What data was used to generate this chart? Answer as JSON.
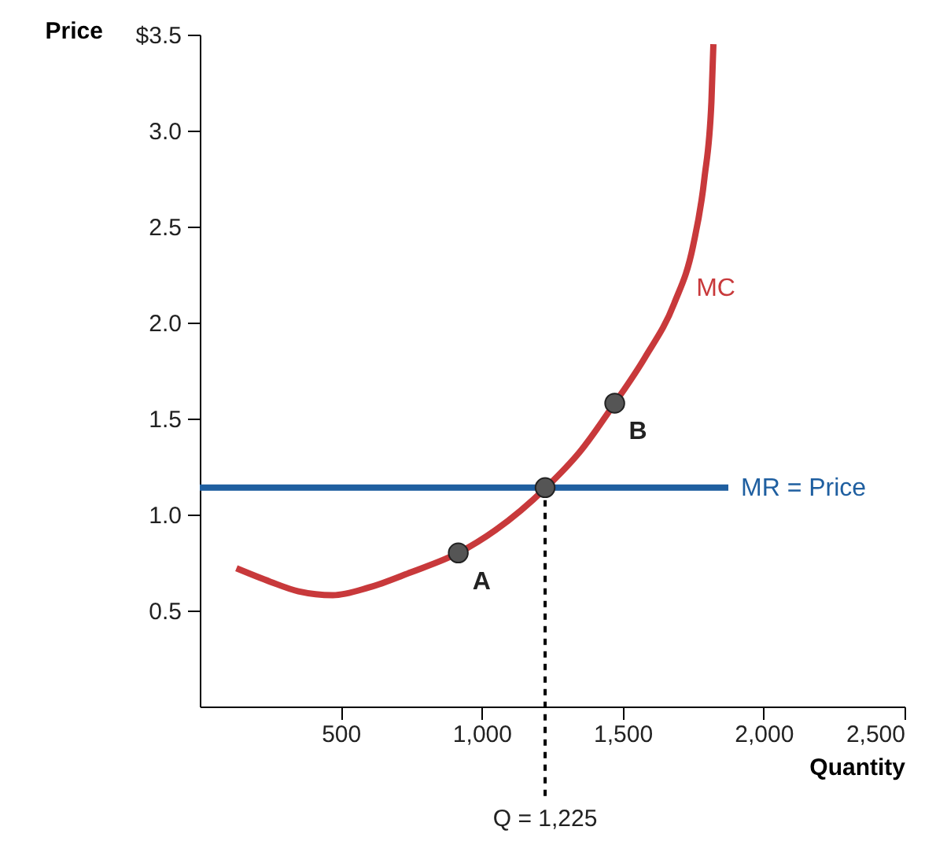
{
  "chart_data": {
    "type": "line",
    "xlabel": "Quantity",
    "ylabel": "Price",
    "xlim": [
      0,
      2500
    ],
    "ylim": [
      0,
      3.5
    ],
    "xticks": [
      {
        "value": 500,
        "label": "500"
      },
      {
        "value": 1000,
        "label": "1,000"
      },
      {
        "value": 1500,
        "label": "1,500"
      },
      {
        "value": 2000,
        "label": "2,000"
      },
      {
        "value": 2500,
        "label": "2,500"
      }
    ],
    "yticks": [
      {
        "value": 0.5,
        "label": "0.5"
      },
      {
        "value": 1,
        "label": "1.0"
      },
      {
        "value": 1.5,
        "label": "1.5"
      },
      {
        "value": 2,
        "label": "2.0"
      },
      {
        "value": 2.5,
        "label": "2.5"
      },
      {
        "value": 3,
        "label": "3.0"
      },
      {
        "value": 3.5,
        "label": "$3.5"
      }
    ],
    "series": [
      {
        "name": "MC",
        "color": "#c8393b",
        "x": [
          130,
          250,
          350,
          472,
          600,
          750,
          917,
          1050,
          1228,
          1350,
          1472,
          1580,
          1683,
          1750,
          1790,
          1815,
          1822
        ],
        "values": [
          0.72,
          0.65,
          0.6,
          0.58,
          0.62,
          0.7,
          0.8,
          0.92,
          1.14,
          1.33,
          1.58,
          1.82,
          2.1,
          2.4,
          2.75,
          3.15,
          3.45
        ]
      },
      {
        "name": "MR = Price",
        "type": "line",
        "color": "#1f5fa0",
        "x": [
          0,
          1875
        ],
        "values": [
          1.14,
          1.14
        ]
      },
      {
        "type": "scatter",
        "color": "#555555",
        "x": [
          917,
          1225,
          1472
        ],
        "values": [
          0.8,
          1.14,
          1.58
        ]
      }
    ],
    "ref_lines": [
      {
        "axis": "x",
        "value": 1225,
        "label": "Q = 1,225",
        "line_style": "dashed"
      }
    ],
    "annotations": [
      {
        "text": "A",
        "x": 917,
        "y": 0.8
      },
      {
        "text": "B",
        "x": 1472,
        "y": 1.58
      }
    ],
    "grid": false,
    "line_style": "solid"
  }
}
